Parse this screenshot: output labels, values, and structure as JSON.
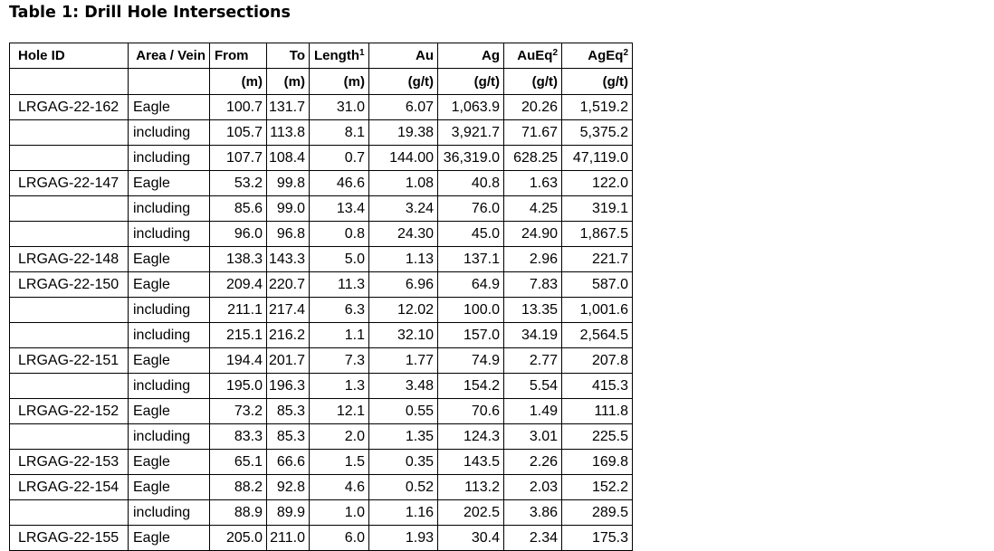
{
  "title": "Table 1: Drill Hole Intersections",
  "table": {
    "columns": [
      {
        "key": "hole-id",
        "label": "Hole ID",
        "sup": "",
        "unit": ""
      },
      {
        "key": "area-vein",
        "label": "Area / Vein",
        "sup": "",
        "unit": ""
      },
      {
        "key": "from",
        "label": "From",
        "sup": "",
        "unit": "(m)"
      },
      {
        "key": "to",
        "label": "To",
        "sup": "",
        "unit": "(m)"
      },
      {
        "key": "length",
        "label": "Length",
        "sup": "1",
        "unit": "(m)"
      },
      {
        "key": "au",
        "label": "Au",
        "sup": "",
        "unit": "(g/t)"
      },
      {
        "key": "ag",
        "label": "Ag",
        "sup": "",
        "unit": "(g/t)"
      },
      {
        "key": "aueq",
        "label": "AuEq",
        "sup": "2",
        "unit": "(g/t)"
      },
      {
        "key": "ageq",
        "label": "AgEq",
        "sup": "2",
        "unit": "(g/t)"
      }
    ],
    "rows": [
      [
        "LRGAG-22-162",
        "Eagle",
        "100.7",
        "131.7",
        "31.0",
        "6.07",
        "1,063.9",
        "20.26",
        "1,519.2"
      ],
      [
        "",
        "including",
        "105.7",
        "113.8",
        "8.1",
        "19.38",
        "3,921.7",
        "71.67",
        "5,375.2"
      ],
      [
        "",
        "including",
        "107.7",
        "108.4",
        "0.7",
        "144.00",
        "36,319.0",
        "628.25",
        "47,119.0"
      ],
      [
        "LRGAG-22-147",
        "Eagle",
        "53.2",
        "99.8",
        "46.6",
        "1.08",
        "40.8",
        "1.63",
        "122.0"
      ],
      [
        "",
        "including",
        "85.6",
        "99.0",
        "13.4",
        "3.24",
        "76.0",
        "4.25",
        "319.1"
      ],
      [
        "",
        "including",
        "96.0",
        "96.8",
        "0.8",
        "24.30",
        "45.0",
        "24.90",
        "1,867.5"
      ],
      [
        "LRGAG-22-148",
        "Eagle",
        "138.3",
        "143.3",
        "5.0",
        "1.13",
        "137.1",
        "2.96",
        "221.7"
      ],
      [
        "LRGAG-22-150",
        "Eagle",
        "209.4",
        "220.7",
        "11.3",
        "6.96",
        "64.9",
        "7.83",
        "587.0"
      ],
      [
        "",
        "including",
        "211.1",
        "217.4",
        "6.3",
        "12.02",
        "100.0",
        "13.35",
        "1,001.6"
      ],
      [
        "",
        "including",
        "215.1",
        "216.2",
        "1.1",
        "32.10",
        "157.0",
        "34.19",
        "2,564.5"
      ],
      [
        "LRGAG-22-151",
        "Eagle",
        "194.4",
        "201.7",
        "7.3",
        "1.77",
        "74.9",
        "2.77",
        "207.8"
      ],
      [
        "",
        "including",
        "195.0",
        "196.3",
        "1.3",
        "3.48",
        "154.2",
        "5.54",
        "415.3"
      ],
      [
        "LRGAG-22-152",
        "Eagle",
        "73.2",
        "85.3",
        "12.1",
        "0.55",
        "70.6",
        "1.49",
        "111.8"
      ],
      [
        "",
        "including",
        "83.3",
        "85.3",
        "2.0",
        "1.35",
        "124.3",
        "3.01",
        "225.5"
      ],
      [
        "LRGAG-22-153",
        "Eagle",
        "65.1",
        "66.6",
        "1.5",
        "0.35",
        "143.5",
        "2.26",
        "169.8"
      ],
      [
        "LRGAG-22-154",
        "Eagle",
        "88.2",
        "92.8",
        "4.6",
        "0.52",
        "113.2",
        "2.03",
        "152.2"
      ],
      [
        "",
        "including",
        "88.9",
        "89.9",
        "1.0",
        "1.16",
        "202.5",
        "3.86",
        "289.5"
      ],
      [
        "LRGAG-22-155",
        "Eagle",
        "205.0",
        "211.0",
        "6.0",
        "1.93",
        "30.4",
        "2.34",
        "175.3"
      ]
    ]
  },
  "colors": {
    "text": "#000000",
    "border": "#000000",
    "background": "#ffffff"
  }
}
